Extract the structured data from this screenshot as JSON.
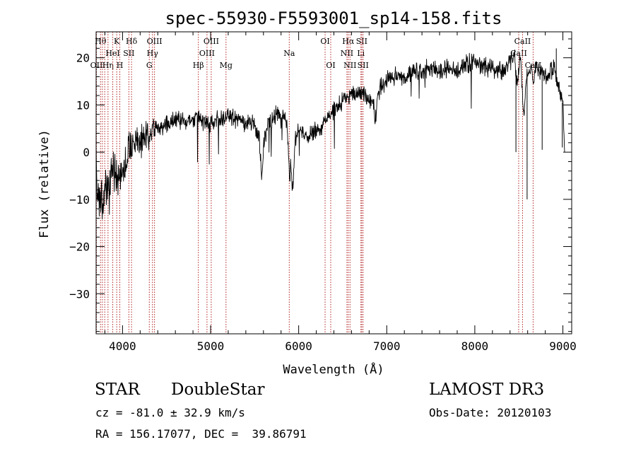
{
  "chart_data": {
    "type": "line",
    "title": "spec-55930-F5593001_sp14-158.fits",
    "xlabel": "Wavelength (Å)",
    "ylabel": "Flux (relative)",
    "xlim": [
      3700,
      9100
    ],
    "ylim": [
      -38.5,
      25.5
    ],
    "x_ticks": [
      4000,
      5000,
      6000,
      7000,
      8000,
      9000
    ],
    "y_ticks": [
      -30,
      -20,
      -10,
      0,
      10,
      20
    ],
    "line_color": "#000000",
    "marker_color": "#b22222",
    "series": [
      {
        "name": "spectrum",
        "x": [
          3700,
          3740,
          3780,
          3820,
          3860,
          3900,
          3950,
          4000,
          4050,
          4100,
          4150,
          4200,
          4250,
          4300,
          4350,
          4400,
          4450,
          4500,
          4600,
          4700,
          4800,
          4850,
          4900,
          4950,
          5000,
          5100,
          5200,
          5300,
          5400,
          5500,
          5550,
          5580,
          5610,
          5650,
          5700,
          5750,
          5800,
          5850,
          5880,
          5895,
          5910,
          5930,
          5960,
          6000,
          6050,
          6100,
          6150,
          6200,
          6250,
          6300,
          6350,
          6400,
          6450,
          6500,
          6540,
          6563,
          6600,
          6650,
          6700,
          6750,
          6800,
          6850,
          6870,
          6900,
          6950,
          7000,
          7100,
          7200,
          7300,
          7400,
          7500,
          7600,
          7700,
          7800,
          7900,
          8000,
          8100,
          8200,
          8300,
          8400,
          8450,
          8480,
          8500,
          8520,
          8540,
          8560,
          8580,
          8620,
          8650,
          8660,
          8700,
          8760,
          8800,
          8850,
          8900,
          8950,
          9000,
          9020
        ],
        "y": [
          -4,
          -9,
          -12,
          -5,
          -8,
          -3,
          -5,
          -4,
          -1,
          2,
          3,
          1,
          3,
          4,
          5,
          6,
          5,
          6,
          7,
          6,
          7,
          8,
          6,
          7,
          6,
          7,
          8,
          7,
          6,
          6,
          3,
          -5,
          3,
          6,
          7,
          8,
          7,
          8,
          2,
          -7,
          -3,
          -8,
          2,
          5,
          4,
          3,
          4,
          5,
          5,
          7,
          8,
          9,
          10,
          11,
          11,
          12,
          13,
          12,
          13,
          12,
          11,
          11,
          6,
          13,
          14,
          15,
          16,
          16,
          17,
          17,
          18,
          17,
          18,
          17,
          19,
          19,
          18,
          18,
          17,
          19,
          21,
          14,
          18,
          20,
          12,
          8,
          15,
          18,
          17,
          15,
          18,
          17,
          16,
          17,
          18,
          14,
          10,
          0
        ]
      }
    ],
    "line_markers": [
      {
        "x": 3704,
        "label": "OII",
        "row": 3
      },
      {
        "x": 3750,
        "label": "Hθ",
        "row": 1
      },
      {
        "x": 3771,
        "label": "",
        "row": 0
      },
      {
        "x": 3798,
        "label": "",
        "row": 0
      },
      {
        "x": 3835,
        "label": "Hη",
        "row": 3
      },
      {
        "x": 3889,
        "label": "HeI",
        "row": 2
      },
      {
        "x": 3934,
        "label": "K",
        "row": 1
      },
      {
        "x": 3969,
        "label": "H",
        "row": 3
      },
      {
        "x": 4072,
        "label": "SII",
        "row": 2
      },
      {
        "x": 4102,
        "label": "Hδ",
        "row": 1
      },
      {
        "x": 4304,
        "label": "G",
        "row": 3
      },
      {
        "x": 4340,
        "label": "Hγ",
        "row": 2
      },
      {
        "x": 4363,
        "label": "OIII",
        "row": 1
      },
      {
        "x": 4861,
        "label": "Hβ",
        "row": 3
      },
      {
        "x": 4959,
        "label": "OIII",
        "row": 2
      },
      {
        "x": 5007,
        "label": "OIII",
        "row": 1
      },
      {
        "x": 5175,
        "label": "Mg",
        "row": 3
      },
      {
        "x": 5893,
        "label": "Na",
        "row": 2
      },
      {
        "x": 6300,
        "label": "OI",
        "row": 1
      },
      {
        "x": 6364,
        "label": "OI",
        "row": 3
      },
      {
        "x": 6548,
        "label": "NII",
        "row": 2
      },
      {
        "x": 6563,
        "label": "Hα",
        "row": 1
      },
      {
        "x": 6583,
        "label": "NII",
        "row": 3
      },
      {
        "x": 6707,
        "label": "Li",
        "row": 2
      },
      {
        "x": 6716,
        "label": "SII",
        "row": 1
      },
      {
        "x": 6731,
        "label": "SII",
        "row": 3
      },
      {
        "x": 8498,
        "label": "CaII",
        "row": 2
      },
      {
        "x": 8542,
        "label": "CaII",
        "row": 1
      },
      {
        "x": 8662,
        "label": "CaII",
        "row": 3
      }
    ]
  },
  "info": {
    "class": "STAR",
    "subclass": "DoubleStar",
    "survey": "LAMOST DR3",
    "cz": "cz = -81.0 ± 32.9 km/s",
    "obs_date": "Obs-Date: 20120103",
    "coords": "RA = 156.17077, DEC =  39.86791"
  }
}
